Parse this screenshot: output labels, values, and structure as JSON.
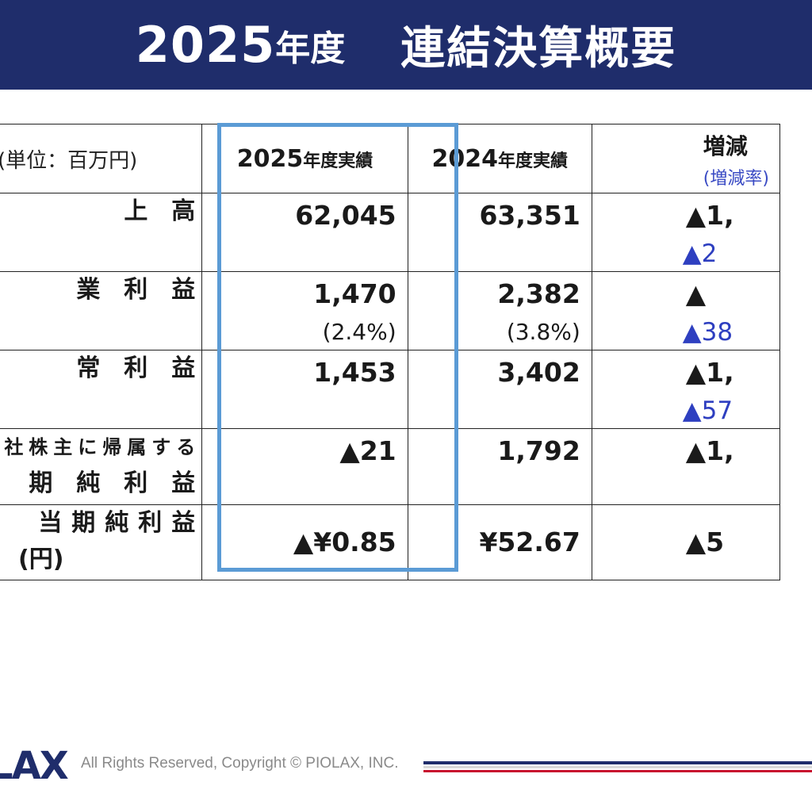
{
  "header": {
    "year_num": "2025",
    "year_suffix": "年度",
    "title": "連結決算概要"
  },
  "table": {
    "unit_label": "(単位：百万円)",
    "col_2025_num": "2025",
    "col_2025_suffix": "年度実績",
    "col_2024_num": "2024",
    "col_2024_suffix": "年度実績",
    "col_change": "増減",
    "col_change_rate": "(増減率)",
    "rows": [
      {
        "label": "上高",
        "v2025": "62,045",
        "v2025_sub": "",
        "v2024": "63,351",
        "v2024_sub": "",
        "change": "▲1,",
        "rate": "▲2"
      },
      {
        "label": "業利益",
        "v2025": "1,470",
        "v2025_sub": "(2.4%)",
        "v2024": "2,382",
        "v2024_sub": "(3.8%)",
        "change": "▲",
        "rate": "▲38"
      },
      {
        "label": "常利益",
        "v2025": "1,453",
        "v2025_sub": "",
        "v2024": "3,402",
        "v2024_sub": "",
        "change": "▲1,",
        "rate": "▲57"
      },
      {
        "label_line1": "社株主に帰属する",
        "label_line2": "期純利益",
        "v2025": "▲21",
        "v2025_sub": "",
        "v2024": "1,792",
        "v2024_sub": "",
        "change": "▲1,",
        "rate": ""
      },
      {
        "label_line1": "当期純利益",
        "label_line2": "(円)",
        "v2025": "▲¥0.85",
        "v2025_sub": "",
        "v2024": "¥52.67",
        "v2024_sub": "",
        "change": "▲5",
        "rate": ""
      }
    ]
  },
  "footer": {
    "logo_text_a": "L",
    "logo_text_b": "AX",
    "copyright": "All Rights Reserved, Copyright © PIOLAX, INC."
  },
  "colors": {
    "header_bg": "#1f2d6b",
    "highlight_border": "#5b9bd5",
    "rate_text": "#2e3fc0",
    "brand_red": "#c8102e"
  }
}
